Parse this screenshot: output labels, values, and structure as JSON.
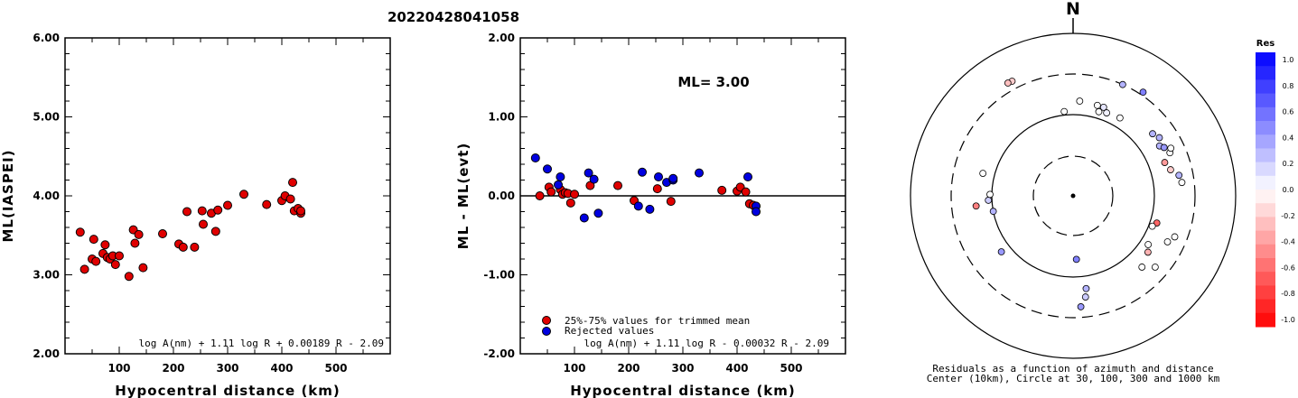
{
  "page_title": "20220428041058",
  "chart_data": [
    {
      "type": "scatter",
      "title": "",
      "xlabel": "Hypocentral distance (km)",
      "ylabel": "ML(IASPEI)",
      "xlim": [
        0,
        600
      ],
      "ylim": [
        2.0,
        6.0
      ],
      "xticks": [
        "100",
        "200",
        "300",
        "400",
        "500"
      ],
      "yticks": [
        "2.00",
        "3.00",
        "4.00",
        "5.00",
        "6.00"
      ],
      "formula": "log A(nm) + 1.11 log R + 0.00189 R - 2.09",
      "series": [
        {
          "color": "#e00000",
          "points": [
            [
              28,
              3.54
            ],
            [
              36,
              3.07
            ],
            [
              50,
              3.2
            ],
            [
              53,
              3.45
            ],
            [
              57,
              3.17
            ],
            [
              70,
              3.27
            ],
            [
              74,
              3.38
            ],
            [
              78,
              3.22
            ],
            [
              83,
              3.2
            ],
            [
              88,
              3.24
            ],
            [
              93,
              3.13
            ],
            [
              100,
              3.24
            ],
            [
              118,
              2.98
            ],
            [
              126,
              3.57
            ],
            [
              129,
              3.4
            ],
            [
              136,
              3.51
            ],
            [
              144,
              3.09
            ],
            [
              180,
              3.52
            ],
            [
              210,
              3.39
            ],
            [
              218,
              3.35
            ],
            [
              225,
              3.8
            ],
            [
              239,
              3.35
            ],
            [
              253,
              3.81
            ],
            [
              255,
              3.64
            ],
            [
              270,
              3.78
            ],
            [
              278,
              3.55
            ],
            [
              282,
              3.82
            ],
            [
              300,
              3.88
            ],
            [
              330,
              4.02
            ],
            [
              372,
              3.89
            ],
            [
              400,
              3.94
            ],
            [
              406,
              4.0
            ],
            [
              416,
              3.96
            ],
            [
              420,
              4.17
            ],
            [
              423,
              3.81
            ],
            [
              430,
              3.84
            ],
            [
              435,
              3.78
            ],
            [
              435,
              3.81
            ]
          ]
        }
      ]
    },
    {
      "type": "scatter",
      "title": "",
      "xlabel": "Hypocentral distance (km)",
      "ylabel": "ML - ML(evt)",
      "xlim": [
        0,
        600
      ],
      "ylim": [
        -2.0,
        2.0
      ],
      "xticks": [
        "100",
        "200",
        "300",
        "400",
        "500"
      ],
      "yticks": [
        "-2.00",
        "-1.00",
        "0.00",
        "1.00",
        "2.00"
      ],
      "annotation": "ML= 3.00",
      "formula": "log A(nm) + 1.11 log R - 0.00032 R - 2.09",
      "legend": [
        "25%-75% values for trimmed mean",
        "Rejected values"
      ],
      "series": [
        {
          "name": "25%-75% values for trimmed mean",
          "color": "#e00000",
          "points": [
            [
              36,
              0.0
            ],
            [
              53,
              0.11
            ],
            [
              57,
              0.05
            ],
            [
              74,
              0.08
            ],
            [
              78,
              0.02
            ],
            [
              83,
              0.04
            ],
            [
              88,
              0.03
            ],
            [
              93,
              -0.09
            ],
            [
              100,
              0.02
            ],
            [
              129,
              0.13
            ],
            [
              180,
              0.13
            ],
            [
              210,
              -0.06
            ],
            [
              253,
              0.09
            ],
            [
              278,
              -0.07
            ],
            [
              372,
              0.07
            ],
            [
              400,
              0.06
            ],
            [
              406,
              0.11
            ],
            [
              416,
              0.05
            ],
            [
              423,
              -0.1
            ],
            [
              430,
              -0.12
            ]
          ]
        },
        {
          "name": "Rejected values",
          "color": "#0000e0",
          "points": [
            [
              28,
              0.48
            ],
            [
              50,
              0.34
            ],
            [
              70,
              0.14
            ],
            [
              74,
              0.24
            ],
            [
              118,
              -0.28
            ],
            [
              126,
              0.29
            ],
            [
              136,
              0.21
            ],
            [
              144,
              -0.22
            ],
            [
              218,
              -0.13
            ],
            [
              225,
              0.3
            ],
            [
              239,
              -0.17
            ],
            [
              255,
              0.24
            ],
            [
              270,
              0.17
            ],
            [
              282,
              0.2
            ],
            [
              282,
              0.22
            ],
            [
              330,
              0.29
            ],
            [
              420,
              0.24
            ],
            [
              435,
              -0.13
            ],
            [
              435,
              -0.2
            ]
          ]
        }
      ]
    }
  ],
  "polar_plot": {
    "north_label": "N",
    "caption_line1": "Residuals as a function of azimuth and distance",
    "caption_line2": "Center (10km), Circle at 30, 100, 300 and 1000 km",
    "stations": [
      {
        "az": 332,
        "d": 380,
        "res": -0.2
      },
      {
        "az": 330,
        "d": 385,
        "res": -0.25
      },
      {
        "az": 24,
        "d": 300,
        "res": 0.3
      },
      {
        "az": 34,
        "d": 330,
        "res": 0.5
      },
      {
        "az": 4,
        "d": 145,
        "res": 0.0
      },
      {
        "az": 15,
        "d": 140,
        "res": 0.0
      },
      {
        "az": 19,
        "d": 140,
        "res": 0.1
      },
      {
        "az": 17,
        "d": 120,
        "res": 0.0
      },
      {
        "az": 22,
        "d": 125,
        "res": 0.05
      },
      {
        "az": 31,
        "d": 130,
        "res": 0.0
      },
      {
        "az": 354,
        "d": 110,
        "res": 0.0
      },
      {
        "az": 52,
        "d": 170,
        "res": 0.3
      },
      {
        "az": 60,
        "d": 165,
        "res": 0.3
      },
      {
        "az": 62,
        "d": 180,
        "res": 0.4
      },
      {
        "az": 56,
        "d": 185,
        "res": 0.3
      },
      {
        "az": 66,
        "d": 195,
        "res": 0.0
      },
      {
        "az": 70,
        "d": 155,
        "res": -0.4
      },
      {
        "az": 75,
        "d": 170,
        "res": -0.2
      },
      {
        "az": 79,
        "d": 205,
        "res": 0.3
      },
      {
        "az": 83,
        "d": 215,
        "res": 0.0
      },
      {
        "az": 64,
        "d": 210,
        "res": 0.0
      },
      {
        "az": 108,
        "d": 120,
        "res": -0.6
      },
      {
        "az": 111,
        "d": 110,
        "res": 0.0
      },
      {
        "az": 123,
        "d": 125,
        "res": 0.0
      },
      {
        "az": 127,
        "d": 140,
        "res": -0.3
      },
      {
        "az": 116,
        "d": 190,
        "res": 0.0
      },
      {
        "az": 112,
        "d": 215,
        "res": 0.0
      },
      {
        "az": 131,
        "d": 210,
        "res": 0.0
      },
      {
        "az": 136,
        "d": 162,
        "res": 0.0
      },
      {
        "az": 177,
        "d": 60,
        "res": 0.5
      },
      {
        "az": 172,
        "d": 140,
        "res": 0.3
      },
      {
        "az": 173,
        "d": 175,
        "res": 0.2
      },
      {
        "az": 176,
        "d": 225,
        "res": 0.4
      },
      {
        "az": 232,
        "d": 130,
        "res": 0.4
      },
      {
        "az": 259,
        "d": 100,
        "res": 0.3
      },
      {
        "az": 264,
        "d": 155,
        "res": -0.5
      },
      {
        "az": 267,
        "d": 110,
        "res": 0.2
      },
      {
        "az": 271,
        "d": 105,
        "res": 0.0
      },
      {
        "az": 284,
        "d": 137,
        "res": 0.0
      }
    ]
  },
  "color_scale": {
    "title": "Res",
    "labels": [
      "1.0",
      "0.8",
      "0.6",
      "0.4",
      "0.2",
      "0.0",
      "-0.2",
      "-0.4",
      "-0.6",
      "-0.8",
      "-1.0"
    ]
  }
}
